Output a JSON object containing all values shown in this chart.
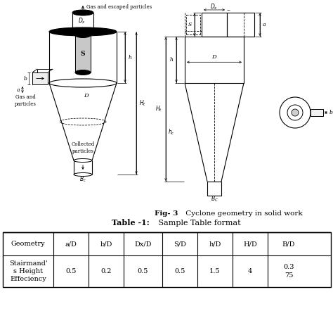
{
  "fig_caption_bold": "Fig- 3",
  "fig_caption_rest": " Cyclone geometry in solid work",
  "table_title_bold": "Table -1:",
  "table_title_rest": " Sample Table format",
  "table_headers": [
    "Geometry",
    "a/D",
    "b/D",
    "Dx/D",
    "S/D",
    "h/D",
    "H/D",
    "B/D"
  ],
  "table_row": [
    "Stairmand'\ns Height\nEffeciency",
    "0.5",
    "0.2",
    "0.5",
    "0.5",
    "1.5",
    "4",
    "0.3\n75"
  ],
  "bg_color": "#ffffff",
  "text_color": "#000000"
}
